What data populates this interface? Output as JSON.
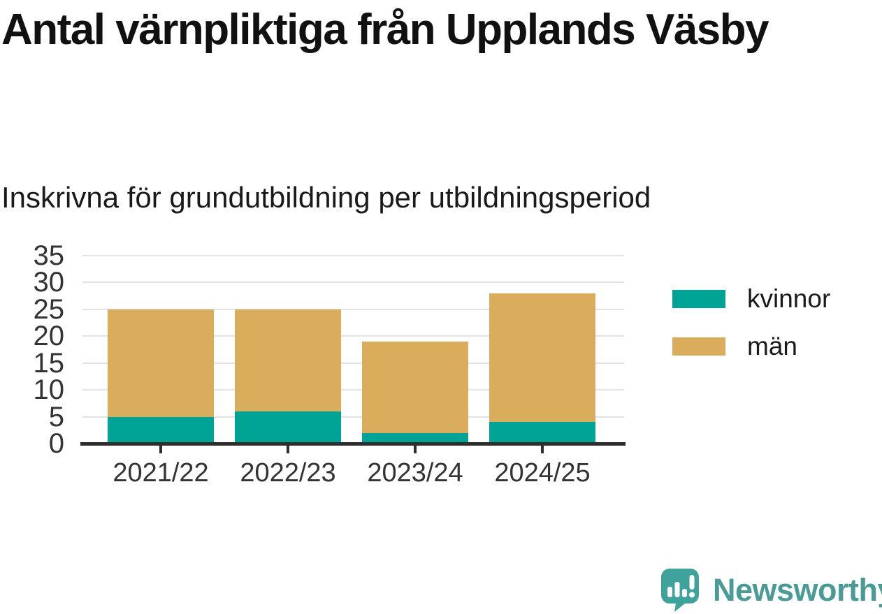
{
  "header": {
    "title": "Antal värnpliktiga från Upplands Väsby",
    "subtitle": "Inskrivna för grundutbildning per utbildningsperiod"
  },
  "chart_data": {
    "type": "bar",
    "stacked": true,
    "title": "Antal värnpliktiga från Upplands Väsby",
    "subtitle": "Inskrivna för grundutbildning per utbildningsperiod",
    "categories": [
      "2021/22",
      "2022/23",
      "2023/24",
      "2024/25"
    ],
    "series": [
      {
        "name": "kvinnor",
        "color": "#00A496",
        "values": [
          5,
          6,
          2,
          4
        ]
      },
      {
        "name": "män",
        "color": "#DAAD5C",
        "values": [
          20,
          19,
          17,
          24
        ]
      }
    ],
    "stack_totals": [
      25,
      25,
      19,
      28
    ],
    "xlabel": "",
    "ylabel": "",
    "ylim": [
      0,
      35
    ],
    "yticks": [
      0,
      5,
      10,
      15,
      20,
      25,
      30,
      35
    ],
    "grid": "horizontal",
    "legend_position": "right"
  },
  "legend": {
    "items": [
      {
        "label": "kvinnor",
        "color": "#00A496"
      },
      {
        "label": "män",
        "color": "#DAAD5C"
      }
    ]
  },
  "branding": {
    "logo_text": "Newsworthy",
    "logo_icon": "newsworthy-chart-bubble-icon",
    "logo_text_color": "#4A9B96",
    "logo_icon_color": "#3FA29B"
  },
  "style_colors": {
    "axis_text": "#333333",
    "gridline": "#E2E2E2",
    "axis_line": "#2E2E2E",
    "background": "#FFFFFF"
  }
}
